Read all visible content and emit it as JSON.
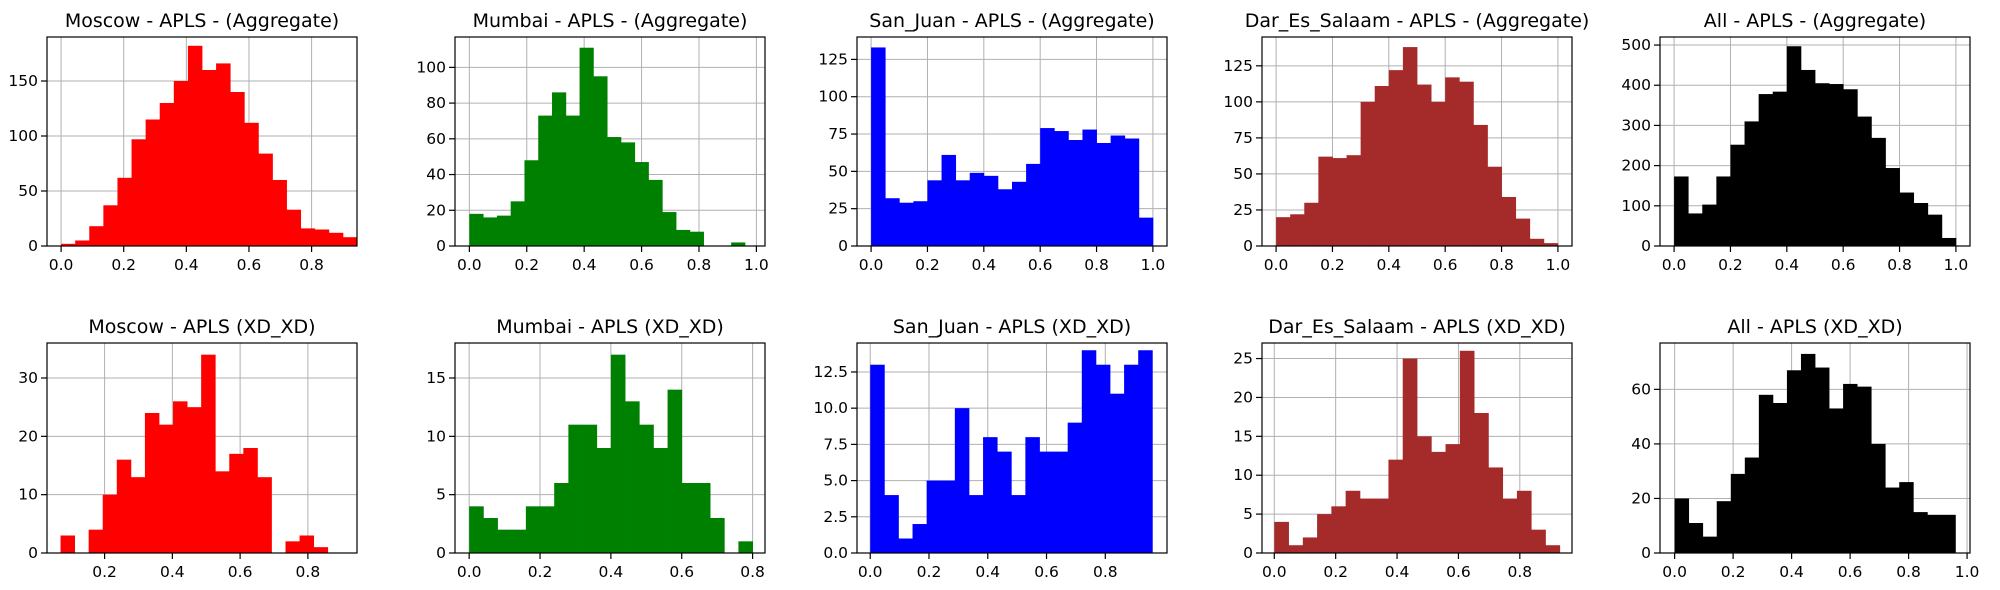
{
  "chart_data": [
    {
      "type": "bar",
      "title": "Moscow - APLS - (Aggregate)",
      "color": "#ff0000",
      "grid": true,
      "xlim": [
        -0.045,
        0.945
      ],
      "ylim": [
        0,
        190
      ],
      "xticks": [
        0.0,
        0.2,
        0.4,
        0.6,
        0.8
      ],
      "xtick_labels": [
        "0.0",
        "0.2",
        "0.4",
        "0.6",
        "0.8"
      ],
      "yticks": [
        0,
        50,
        100,
        150
      ],
      "ytick_labels": [
        "0",
        "50",
        "100",
        "150"
      ],
      "bin_start": 0.0,
      "bin_width": 0.045,
      "values": [
        2,
        5,
        18,
        37,
        62,
        97,
        115,
        130,
        150,
        182,
        160,
        166,
        140,
        112,
        84,
        60,
        33,
        16,
        15,
        12,
        8
      ]
    },
    {
      "type": "bar",
      "title": "Mumbai - APLS - (Aggregate)",
      "color": "#008000",
      "grid": true,
      "xlim": [
        -0.05,
        1.03
      ],
      "ylim": [
        0,
        117
      ],
      "xticks": [
        0.0,
        0.2,
        0.4,
        0.6,
        0.8,
        1.0
      ],
      "xtick_labels": [
        "0.0",
        "0.2",
        "0.4",
        "0.6",
        "0.8",
        "1.0"
      ],
      "yticks": [
        0,
        20,
        40,
        60,
        80,
        100
      ],
      "ytick_labels": [
        "0",
        "20",
        "40",
        "60",
        "80",
        "100"
      ],
      "bin_start": 0.0,
      "bin_width": 0.048,
      "values": [
        18,
        16,
        17,
        25,
        48,
        73,
        86,
        73,
        111,
        95,
        61,
        58,
        47,
        37,
        19,
        9,
        8,
        0,
        0,
        2
      ]
    },
    {
      "type": "bar",
      "title": "San_Juan - APLS - (Aggregate)",
      "color": "#0000ff",
      "grid": true,
      "xlim": [
        -0.05,
        1.05
      ],
      "ylim": [
        0,
        140
      ],
      "xticks": [
        0.0,
        0.2,
        0.4,
        0.6,
        0.8,
        1.0
      ],
      "xtick_labels": [
        "0.0",
        "0.2",
        "0.4",
        "0.6",
        "0.8",
        "1.0"
      ],
      "yticks": [
        0,
        25,
        50,
        75,
        100,
        125
      ],
      "ytick_labels": [
        "0",
        "25",
        "50",
        "75",
        "100",
        "125"
      ],
      "bin_start": 0.0,
      "bin_width": 0.05,
      "values": [
        133,
        32,
        29,
        30,
        44,
        61,
        44,
        49,
        47,
        38,
        43,
        55,
        79,
        77,
        71,
        78,
        69,
        74,
        72,
        19
      ]
    },
    {
      "type": "bar",
      "title": "Dar_Es_Salaam - APLS - (Aggregate)",
      "color": "#a52a2a",
      "grid": true,
      "xlim": [
        -0.05,
        1.05
      ],
      "ylim": [
        0,
        145
      ],
      "xticks": [
        0.0,
        0.2,
        0.4,
        0.6,
        0.8,
        1.0
      ],
      "xtick_labels": [
        "0.0",
        "0.2",
        "0.4",
        "0.6",
        "0.8",
        "1.0"
      ],
      "yticks": [
        0,
        25,
        50,
        75,
        100,
        125
      ],
      "ytick_labels": [
        "0",
        "25",
        "50",
        "75",
        "100",
        "125"
      ],
      "bin_start": 0.0,
      "bin_width": 0.05,
      "values": [
        20,
        22,
        30,
        62,
        61,
        63,
        100,
        111,
        122,
        138,
        112,
        100,
        117,
        114,
        84,
        55,
        34,
        19,
        5,
        2
      ]
    },
    {
      "type": "bar",
      "title": "All - APLS - (Aggregate)",
      "color": "#000000",
      "grid": true,
      "xlim": [
        -0.05,
        1.05
      ],
      "ylim": [
        0,
        520
      ],
      "xticks": [
        0.0,
        0.2,
        0.4,
        0.6,
        0.8,
        1.0
      ],
      "xtick_labels": [
        "0.0",
        "0.2",
        "0.4",
        "0.6",
        "0.8",
        "1.0"
      ],
      "yticks": [
        0,
        100,
        200,
        300,
        400,
        500
      ],
      "ytick_labels": [
        "0",
        "100",
        "200",
        "300",
        "400",
        "500"
      ],
      "bin_start": 0.0,
      "bin_width": 0.05,
      "values": [
        173,
        81,
        103,
        173,
        252,
        310,
        378,
        384,
        497,
        438,
        405,
        403,
        390,
        322,
        269,
        194,
        133,
        107,
        78,
        20
      ]
    },
    {
      "type": "bar",
      "title": "Moscow - APLS (XD_XD)",
      "color": "#ff0000",
      "grid": true,
      "xlim": [
        0.03,
        0.945
      ],
      "ylim": [
        0,
        36
      ],
      "xticks": [
        0.2,
        0.4,
        0.6,
        0.8
      ],
      "xtick_labels": [
        "0.2",
        "0.4",
        "0.6",
        "0.8"
      ],
      "yticks": [
        0,
        10,
        20,
        30
      ],
      "ytick_labels": [
        "0",
        "10",
        "20",
        "30"
      ],
      "bin_start": 0.07,
      "bin_width": 0.0415,
      "values": [
        3,
        0,
        4,
        10,
        16,
        13,
        24,
        22,
        26,
        25,
        34,
        14,
        17,
        18,
        13,
        0,
        2,
        3,
        1
      ]
    },
    {
      "type": "bar",
      "title": "Mumbai - APLS (XD_XD)",
      "color": "#008000",
      "grid": true,
      "xlim": [
        -0.04,
        0.835
      ],
      "ylim": [
        0,
        18
      ],
      "xticks": [
        0.0,
        0.2,
        0.4,
        0.6,
        0.8
      ],
      "xtick_labels": [
        "0.0",
        "0.2",
        "0.4",
        "0.6",
        "0.8"
      ],
      "yticks": [
        0,
        5,
        10,
        15
      ],
      "ytick_labels": [
        "0",
        "5",
        "10",
        "15"
      ],
      "bin_start": 0.0,
      "bin_width": 0.04,
      "values": [
        4,
        3,
        2,
        2,
        4,
        4,
        6,
        11,
        11,
        9,
        17,
        13,
        11,
        9,
        14,
        6,
        6,
        3,
        0,
        1
      ]
    },
    {
      "type": "bar",
      "title": "San_Juan - APLS (XD_XD)",
      "color": "#0000ff",
      "grid": true,
      "xlim": [
        -0.045,
        1.01
      ],
      "ylim": [
        0,
        14.5
      ],
      "xticks": [
        0.0,
        0.2,
        0.4,
        0.6,
        0.8
      ],
      "xtick_labels": [
        "0.0",
        "0.2",
        "0.4",
        "0.6",
        "0.8"
      ],
      "yticks": [
        0.0,
        2.5,
        5.0,
        7.5,
        10.0,
        12.5
      ],
      "ytick_labels": [
        "0.0",
        "2.5",
        "5.0",
        "7.5",
        "10.0",
        "12.5"
      ],
      "bin_start": 0.0,
      "bin_width": 0.048,
      "values": [
        13,
        4,
        1,
        2,
        5,
        5,
        10,
        4,
        8,
        7,
        4,
        8,
        7,
        7,
        9,
        14,
        13,
        11,
        13,
        14
      ]
    },
    {
      "type": "bar",
      "title": "Dar_Es_Salaam - APLS (XD_XD)",
      "color": "#a52a2a",
      "grid": true,
      "xlim": [
        -0.04,
        0.97
      ],
      "ylim": [
        0,
        27
      ],
      "xticks": [
        0.0,
        0.2,
        0.4,
        0.6,
        0.8
      ],
      "xtick_labels": [
        "0.0",
        "0.2",
        "0.4",
        "0.6",
        "0.8"
      ],
      "yticks": [
        0,
        5,
        10,
        15,
        20,
        25
      ],
      "ytick_labels": [
        "0",
        "5",
        "10",
        "15",
        "20",
        "25"
      ],
      "bin_start": 0.0,
      "bin_width": 0.0465,
      "values": [
        4,
        1,
        2,
        5,
        6,
        8,
        7,
        7,
        12,
        25,
        15,
        13,
        14,
        26,
        18,
        11,
        7,
        8,
        3,
        1
      ]
    },
    {
      "type": "bar",
      "title": "All - APLS (XD_XD)",
      "color": "#000000",
      "grid": true,
      "xlim": [
        -0.05,
        1.01
      ],
      "ylim": [
        0,
        77
      ],
      "xticks": [
        0.0,
        0.2,
        0.4,
        0.6,
        0.8,
        1.0
      ],
      "xtick_labels": [
        "0.0",
        "0.2",
        "0.4",
        "0.6",
        "0.8",
        "1.0"
      ],
      "yticks": [
        0,
        20,
        40,
        60
      ],
      "ytick_labels": [
        "0",
        "20",
        "40",
        "60"
      ],
      "bin_start": 0.0,
      "bin_width": 0.048,
      "values": [
        20,
        11,
        6,
        19,
        29,
        35,
        58,
        55,
        67,
        73,
        68,
        53,
        62,
        61,
        40,
        24,
        26,
        15,
        14,
        14
      ]
    }
  ]
}
